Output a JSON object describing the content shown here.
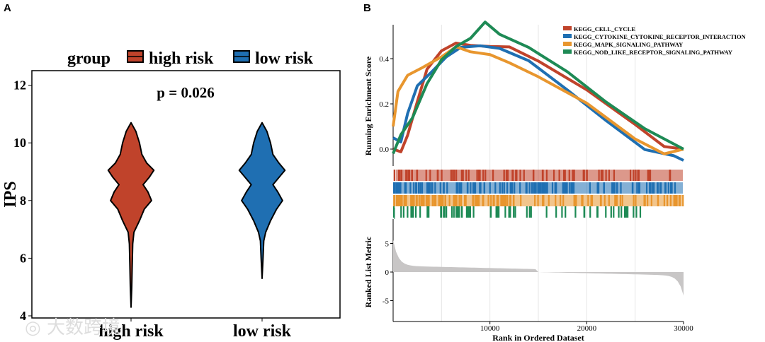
{
  "watermark": "大数跨境",
  "chart_data": [
    {
      "panel": "A",
      "type": "violin",
      "legend": {
        "title": "group",
        "entries": [
          "high risk",
          "low risk"
        ],
        "placement": "top"
      },
      "annotation": "p = 0.026",
      "ylabel": "IPS",
      "ylim": [
        4,
        12.5
      ],
      "yticks": [
        4,
        6,
        8,
        10,
        12
      ],
      "categories": [
        "high risk",
        "low risk"
      ],
      "colors": [
        "#C0432B",
        "#1F6FB2"
      ],
      "density": [
        [
          [
            4.3,
            0
          ],
          [
            5,
            0.03
          ],
          [
            5.8,
            0.05
          ],
          [
            6.5,
            0.07
          ],
          [
            6.9,
            0.12
          ],
          [
            7.3,
            0.35
          ],
          [
            7.7,
            0.55
          ],
          [
            8.0,
            0.85
          ],
          [
            8.3,
            0.7
          ],
          [
            8.55,
            0.5
          ],
          [
            8.8,
            0.75
          ],
          [
            9.05,
            0.95
          ],
          [
            9.3,
            0.65
          ],
          [
            9.6,
            0.45
          ],
          [
            10.0,
            0.35
          ],
          [
            10.4,
            0.2
          ],
          [
            10.7,
            0
          ]
        ],
        [
          [
            5.3,
            0
          ],
          [
            6,
            0.04
          ],
          [
            6.6,
            0.07
          ],
          [
            6.9,
            0.15
          ],
          [
            7.3,
            0.35
          ],
          [
            7.7,
            0.6
          ],
          [
            8.0,
            0.85
          ],
          [
            8.3,
            0.65
          ],
          [
            8.55,
            0.45
          ],
          [
            8.8,
            0.7
          ],
          [
            9.05,
            0.95
          ],
          [
            9.3,
            0.7
          ],
          [
            9.6,
            0.45
          ],
          [
            10.0,
            0.35
          ],
          [
            10.4,
            0.2
          ],
          [
            10.7,
            0
          ]
        ]
      ]
    },
    {
      "panel": "B",
      "type": "line",
      "xlabel": "Rank in Ordered Dataset",
      "xlim": [
        0,
        30000
      ],
      "xticks": [
        10000,
        20000,
        30000
      ],
      "ylabel": "Running Enrichment Score",
      "ylim": [
        -0.07,
        0.56
      ],
      "yticks": [
        0.0,
        0.2,
        0.4
      ],
      "ylabel2": "Ranked List Metric",
      "ylim2": [
        -8,
        8
      ],
      "yticks2": [
        5,
        0,
        -5
      ],
      "legend_placement": "top-right",
      "series": [
        {
          "name": "KEGG_CELL_CYCLE",
          "color": "#C0432B",
          "x": [
            0,
            800,
            1500,
            2500,
            3500,
            5000,
            6500,
            8000,
            10000,
            12000,
            15000,
            20000,
            25000,
            28000,
            30000
          ],
          "y": [
            0,
            -0.02,
            0.05,
            0.2,
            0.35,
            0.44,
            0.48,
            0.47,
            0.46,
            0.45,
            0.38,
            0.25,
            0.1,
            0.01,
            0
          ]
        },
        {
          "name": "KEGG_CYTOKINE_CYTOKINE_RECEPTOR_INTERACTION",
          "color": "#1F6FB2",
          "x": [
            0,
            800,
            1500,
            2500,
            4000,
            5500,
            7000,
            9000,
            11000,
            14000,
            18000,
            22000,
            26000,
            29000,
            30000
          ],
          "y": [
            0.05,
            0.02,
            0.15,
            0.28,
            0.35,
            0.42,
            0.46,
            0.46,
            0.44,
            0.38,
            0.25,
            0.12,
            0.0,
            -0.02,
            -0.05
          ]
        },
        {
          "name": "KEGG_MAPK_SIGNALING_PATHWAY",
          "color": "#E8962E",
          "x": [
            0,
            500,
            1500,
            3000,
            5000,
            6500,
            8000,
            10000,
            12000,
            15000,
            20000,
            25000,
            28000,
            30000
          ],
          "y": [
            0.1,
            0.25,
            0.33,
            0.37,
            0.42,
            0.46,
            0.43,
            0.41,
            0.37,
            0.31,
            0.2,
            0.05,
            -0.01,
            0
          ]
        },
        {
          "name": "KEGG_NOD_LIKE_RECEPTOR_SIGNALING_PATHWAY",
          "color": "#1E8A55",
          "x": [
            0,
            800,
            2000,
            3500,
            5000,
            6500,
            8000,
            9500,
            11000,
            14000,
            18000,
            22000,
            26000,
            30000
          ],
          "y": [
            -0.02,
            0.07,
            0.15,
            0.3,
            0.4,
            0.45,
            0.48,
            0.55,
            0.5,
            0.45,
            0.35,
            0.22,
            0.1,
            0
          ]
        }
      ]
    }
  ]
}
